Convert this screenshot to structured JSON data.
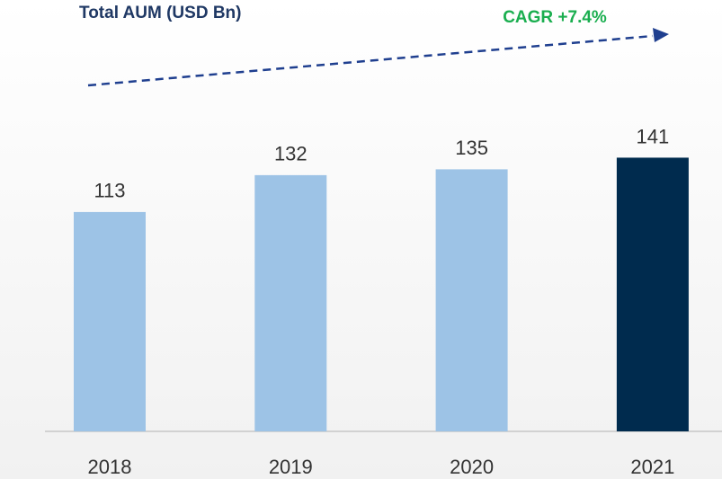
{
  "chart_data": {
    "type": "bar",
    "title": "Total AUM (USD Bn)",
    "annotation": "CAGR +7.4%",
    "categories": [
      "2018",
      "2019",
      "2020",
      "2021"
    ],
    "values": [
      113,
      132,
      135,
      141
    ],
    "colors": [
      "#9dc3e6",
      "#9dc3e6",
      "#9dc3e6",
      "#002b4e"
    ]
  }
}
